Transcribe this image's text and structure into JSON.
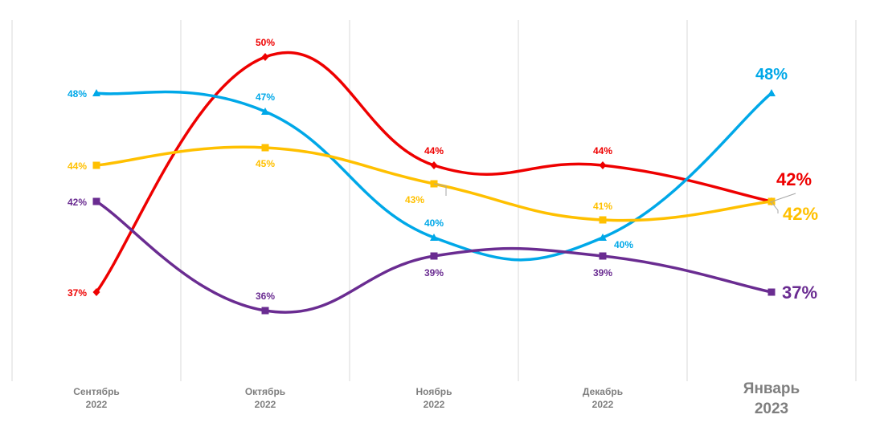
{
  "chart_data": {
    "type": "line",
    "title": "",
    "xlabel": "",
    "ylabel": "",
    "ylim": [
      30,
      52
    ],
    "grid": "vertical",
    "legend": "none",
    "categories": [
      {
        "month": "Сентябрь",
        "year": "2022"
      },
      {
        "month": "Октябрь",
        "year": "2022"
      },
      {
        "month": "Ноябрь",
        "year": "2022"
      },
      {
        "month": "Декабрь",
        "year": "2022"
      },
      {
        "month": "Январь",
        "year": "2023"
      }
    ],
    "series": [
      {
        "color": "#ee0000",
        "marker": "diamond",
        "values": [
          37,
          50,
          44,
          44,
          42
        ],
        "labels": [
          "37%",
          "50%",
          "44%",
          "44%",
          "42%"
        ]
      },
      {
        "color": "#00a8e8",
        "marker": "triangle",
        "values": [
          48,
          47,
          40,
          40,
          48
        ],
        "labels": [
          "48%",
          "47%",
          "40%",
          "40%",
          "48%"
        ]
      },
      {
        "color": "#ffc000",
        "marker": "square",
        "values": [
          44,
          45,
          43,
          41,
          42
        ],
        "labels": [
          "44%",
          "45%",
          "43%",
          "41%",
          "42%"
        ]
      },
      {
        "color": "#6a2c91",
        "marker": "square",
        "values": [
          42,
          36,
          39,
          39,
          37
        ],
        "labels": [
          "42%",
          "36%",
          "39%",
          "39%",
          "37%"
        ]
      }
    ]
  }
}
